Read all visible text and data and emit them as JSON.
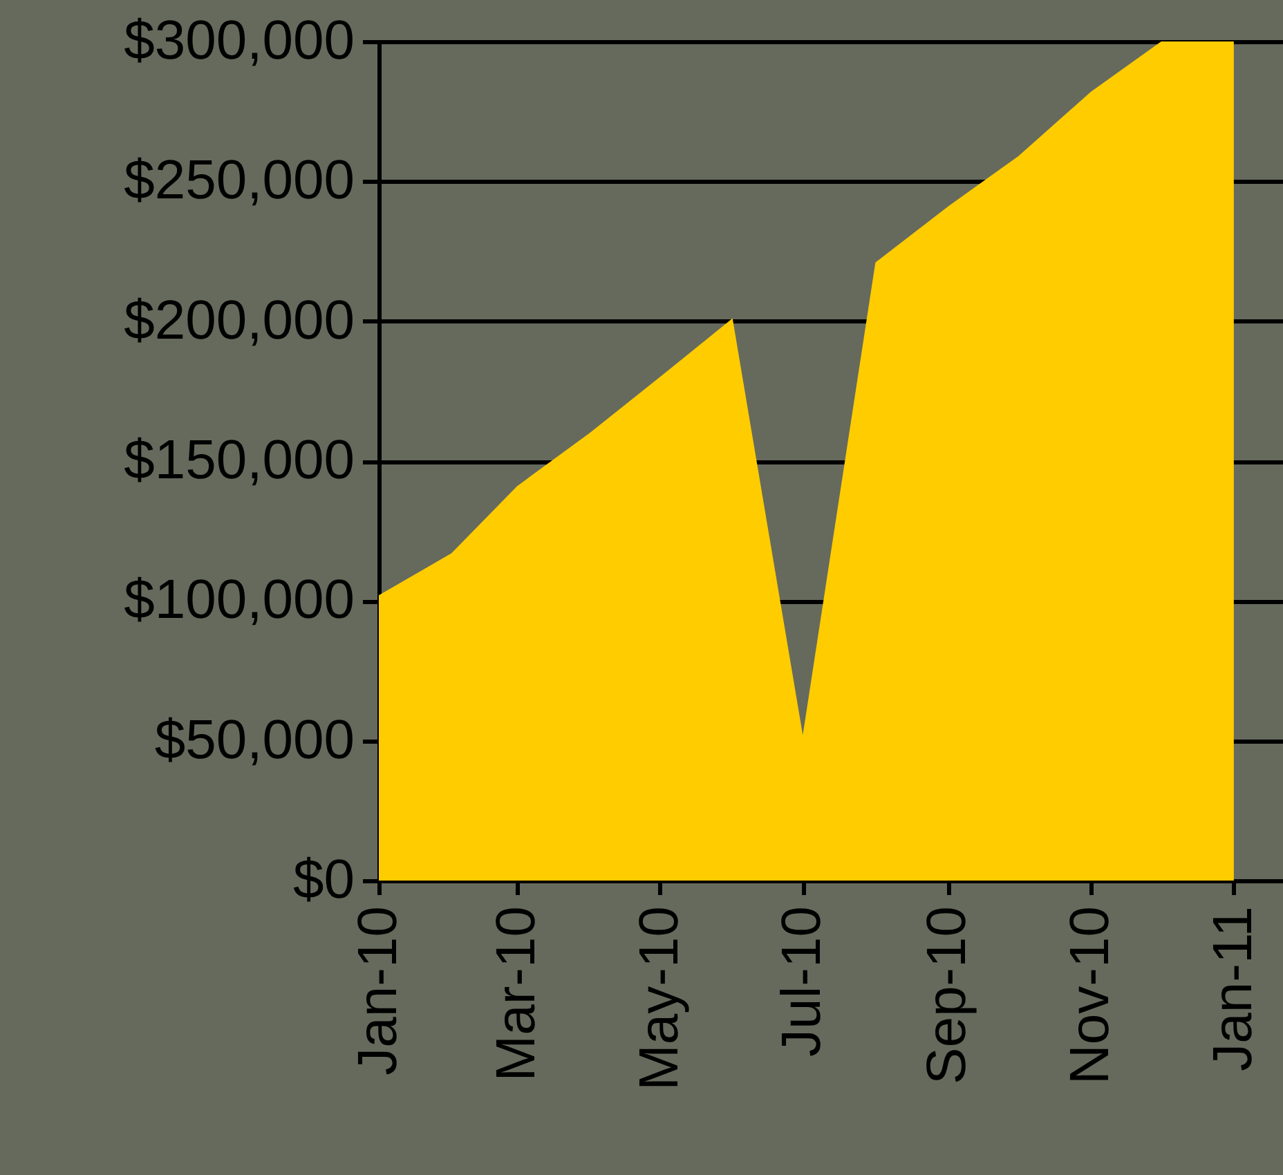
{
  "chart_data": {
    "type": "area",
    "x": [
      "2010-01",
      "2010-02",
      "2010-03",
      "2010-04",
      "2010-05",
      "2010-06",
      "2010-07",
      "2010-08",
      "2010-09",
      "2010-10",
      "2010-11",
      "2010-12",
      "2011-01"
    ],
    "series": [
      {
        "color": "#ffcc00",
        "values": [
          102000,
          117000,
          141000,
          160000,
          180000,
          201000,
          52000,
          221000,
          241000,
          259000,
          282000,
          300000,
          300000
        ]
      }
    ],
    "xlim": [
      "2010-01",
      "2011-01-22"
    ],
    "xticks": [
      {
        "value": "2010-01",
        "label": "Jan-10"
      },
      {
        "value": "2010-03",
        "label": "Mar-10"
      },
      {
        "value": "2010-05",
        "label": "May-10"
      },
      {
        "value": "2010-07",
        "label": "Jul-10"
      },
      {
        "value": "2010-09",
        "label": "Sep-10"
      },
      {
        "value": "2010-11",
        "label": "Nov-10"
      },
      {
        "value": "2011-01",
        "label": "Jan-11"
      }
    ],
    "ylim": [
      0,
      300000
    ],
    "yticks": [
      {
        "value": 0,
        "label": "$0"
      },
      {
        "value": 50000,
        "label": "$50,000"
      },
      {
        "value": 100000,
        "label": "$100,000"
      },
      {
        "value": 150000,
        "label": "$150,000"
      },
      {
        "value": 200000,
        "label": "$200,000"
      },
      {
        "value": 250000,
        "label": "$250,000"
      },
      {
        "value": 300000,
        "label": "$300,000"
      }
    ],
    "grid": "y"
  }
}
